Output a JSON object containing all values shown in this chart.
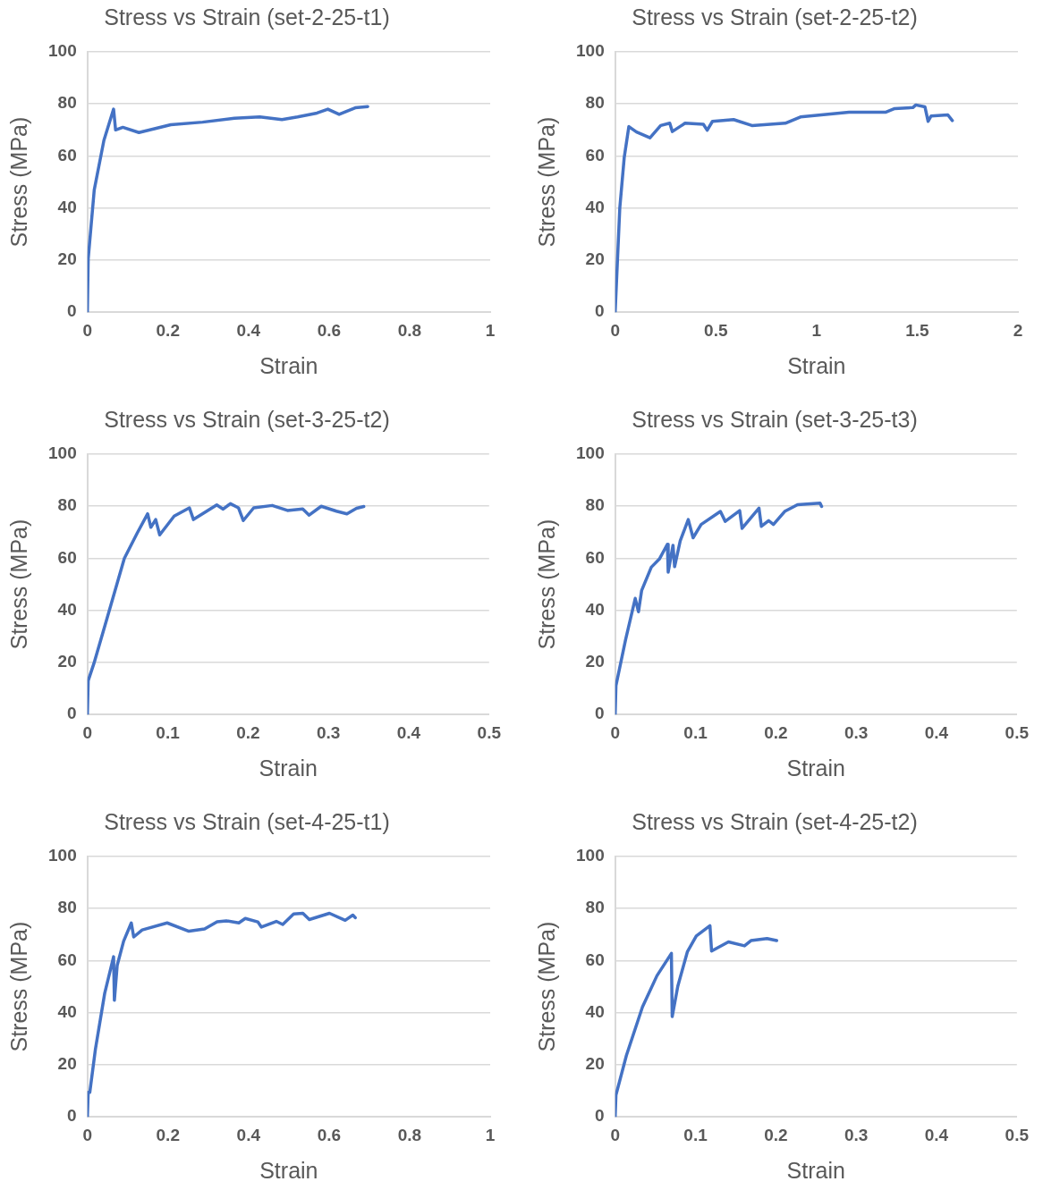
{
  "chart_data": [
    {
      "type": "line",
      "title": "Stress vs Strain (set-2-25-t1)",
      "xlabel": "Strain",
      "ylabel": "Stress (MPa)",
      "xlim": [
        0,
        1
      ],
      "xticks": [
        0,
        0.2,
        0.4,
        0.6,
        0.8,
        1
      ],
      "ylim": [
        0,
        100
      ],
      "yticks": [
        0,
        20,
        40,
        60,
        80,
        100
      ],
      "grid": "y",
      "legend": false,
      "x": [
        0,
        0.002,
        0.017,
        0.041,
        0.065,
        0.07,
        0.088,
        0.128,
        0.207,
        0.286,
        0.365,
        0.428,
        0.483,
        0.522,
        0.57,
        0.597,
        0.625,
        0.665,
        0.696
      ],
      "series": [
        {
          "color": "#4472c4",
          "values": [
            0,
            20.5,
            47,
            66,
            78,
            70,
            71,
            69,
            72,
            73,
            74.5,
            75,
            74,
            75,
            76.5,
            78,
            76,
            78.5,
            79
          ]
        }
      ]
    },
    {
      "type": "line",
      "title": "Stress vs Strain (set-2-25-t2)",
      "xlabel": "Strain",
      "ylabel": "Stress (MPa)",
      "xlim": [
        0,
        2
      ],
      "xticks": [
        0,
        0.5,
        1,
        1.5,
        2
      ],
      "ylim": [
        0,
        100
      ],
      "yticks": [
        0,
        20,
        40,
        60,
        80,
        100
      ],
      "grid": "y",
      "legend": false,
      "x": [
        0,
        0.023,
        0.045,
        0.068,
        0.106,
        0.173,
        0.226,
        0.271,
        0.284,
        0.347,
        0.438,
        0.457,
        0.483,
        0.588,
        0.679,
        0.845,
        0.92,
        1.161,
        1.342,
        1.388,
        1.478,
        1.493,
        1.538,
        1.554,
        1.569,
        1.652,
        1.674
      ],
      "series": [
        {
          "color": "#4472c4",
          "values": [
            0,
            40,
            59.4,
            71.3,
            69.2,
            67,
            71.7,
            72.6,
            69.4,
            72.6,
            72.2,
            69.9,
            73.3,
            74,
            71.7,
            72.6,
            75,
            76.8,
            76.8,
            78.2,
            78.6,
            79.6,
            78.9,
            73.3,
            75.4,
            75.8,
            73.6
          ]
        }
      ]
    },
    {
      "type": "line",
      "title": "Stress vs Strain (set-3-25-t2)",
      "xlabel": "Strain",
      "ylabel": "Stress (MPa)",
      "xlim": [
        0,
        0.5
      ],
      "xticks": [
        0,
        0.1,
        0.2,
        0.3,
        0.4,
        0.5
      ],
      "ylim": [
        0,
        100
      ],
      "yticks": [
        0,
        20,
        40,
        60,
        80,
        100
      ],
      "grid": "y",
      "legend": false,
      "x": [
        0,
        0.001,
        0.008,
        0.024,
        0.046,
        0.062,
        0.075,
        0.079,
        0.085,
        0.09,
        0.108,
        0.127,
        0.132,
        0.161,
        0.169,
        0.178,
        0.188,
        0.194,
        0.207,
        0.23,
        0.249,
        0.268,
        0.276,
        0.291,
        0.31,
        0.323,
        0.335,
        0.344
      ],
      "series": [
        {
          "color": "#4472c4",
          "values": [
            0,
            13,
            19.5,
            36.5,
            60,
            69.7,
            77.1,
            71.9,
            74.9,
            69,
            76.2,
            79.4,
            74.9,
            80.5,
            78.9,
            81,
            79.4,
            74.5,
            79.4,
            80.3,
            78.4,
            79,
            76.6,
            80,
            78.1,
            77.1,
            79.2,
            79.9
          ]
        }
      ]
    },
    {
      "type": "line",
      "title": "Stress vs Strain (set-3-25-t3)",
      "xlabel": "Strain",
      "ylabel": "Stress (MPa)",
      "xlim": [
        0,
        0.5
      ],
      "xticks": [
        0,
        0.1,
        0.2,
        0.3,
        0.4,
        0.5
      ],
      "ylim": [
        0,
        100
      ],
      "yticks": [
        0,
        20,
        40,
        60,
        80,
        100
      ],
      "grid": "y",
      "legend": false,
      "x": [
        0,
        0.001,
        0.013,
        0.025,
        0.029,
        0.033,
        0.045,
        0.055,
        0.065,
        0.066,
        0.072,
        0.074,
        0.081,
        0.091,
        0.097,
        0.107,
        0.131,
        0.137,
        0.155,
        0.158,
        0.179,
        0.182,
        0.191,
        0.197,
        0.211,
        0.227,
        0.255,
        0.257
      ],
      "series": [
        {
          "color": "#4472c4",
          "values": [
            0,
            11.1,
            28.8,
            44.6,
            39.5,
            47.7,
            56.6,
            59.7,
            65.4,
            54.7,
            65,
            56.8,
            66.7,
            74.9,
            67.9,
            73,
            78,
            74.2,
            78.3,
            71.5,
            79.3,
            72.3,
            74.5,
            73,
            78,
            80.6,
            81.2,
            79.9
          ]
        }
      ]
    },
    {
      "type": "line",
      "title": "Stress vs Strain (set-4-25-t1)",
      "xlabel": "Strain",
      "ylabel": "Stress (MPa)",
      "xlim": [
        0,
        1
      ],
      "xticks": [
        0,
        0.2,
        0.4,
        0.6,
        0.8,
        1
      ],
      "ylim": [
        0,
        100
      ],
      "yticks": [
        0,
        20,
        40,
        60,
        80,
        100
      ],
      "grid": "y",
      "legend": false,
      "x": [
        0,
        0.002,
        0.006,
        0.02,
        0.043,
        0.065,
        0.067,
        0.074,
        0.09,
        0.109,
        0.115,
        0.136,
        0.198,
        0.252,
        0.291,
        0.322,
        0.345,
        0.376,
        0.392,
        0.423,
        0.432,
        0.469,
        0.485,
        0.512,
        0.535,
        0.551,
        0.601,
        0.64,
        0.659,
        0.665
      ],
      "series": [
        {
          "color": "#4472c4",
          "values": [
            0,
            9.4,
            9.4,
            26.1,
            47.5,
            61.5,
            44.8,
            58.2,
            67.5,
            74.5,
            69.1,
            71.8,
            74.5,
            71.3,
            72.2,
            74.9,
            75.3,
            74.5,
            76.2,
            74.9,
            72.9,
            75.1,
            73.9,
            77.9,
            78.2,
            75.8,
            78.2,
            75.5,
            77.5,
            76.5
          ]
        }
      ]
    },
    {
      "type": "line",
      "title": "Stress vs Strain (set-4-25-t2)",
      "xlabel": "Strain",
      "ylabel": "Stress (MPa)",
      "xlim": [
        0,
        0.5
      ],
      "xticks": [
        0,
        0.1,
        0.2,
        0.3,
        0.4,
        0.5
      ],
      "ylim": [
        0,
        100
      ],
      "yticks": [
        0,
        20,
        40,
        60,
        80,
        100
      ],
      "grid": "y",
      "legend": false,
      "x": [
        0,
        0.001,
        0.014,
        0.034,
        0.052,
        0.07,
        0.071,
        0.078,
        0.09,
        0.101,
        0.118,
        0.12,
        0.141,
        0.161,
        0.169,
        0.189,
        0.201
      ],
      "series": [
        {
          "color": "#4472c4",
          "values": [
            0,
            8.4,
            23.6,
            42.2,
            54.2,
            62.8,
            38.5,
            50.2,
            63.5,
            69.5,
            73.4,
            63.7,
            67.2,
            65.7,
            67.7,
            68.5,
            67.7
          ]
        }
      ]
    }
  ]
}
